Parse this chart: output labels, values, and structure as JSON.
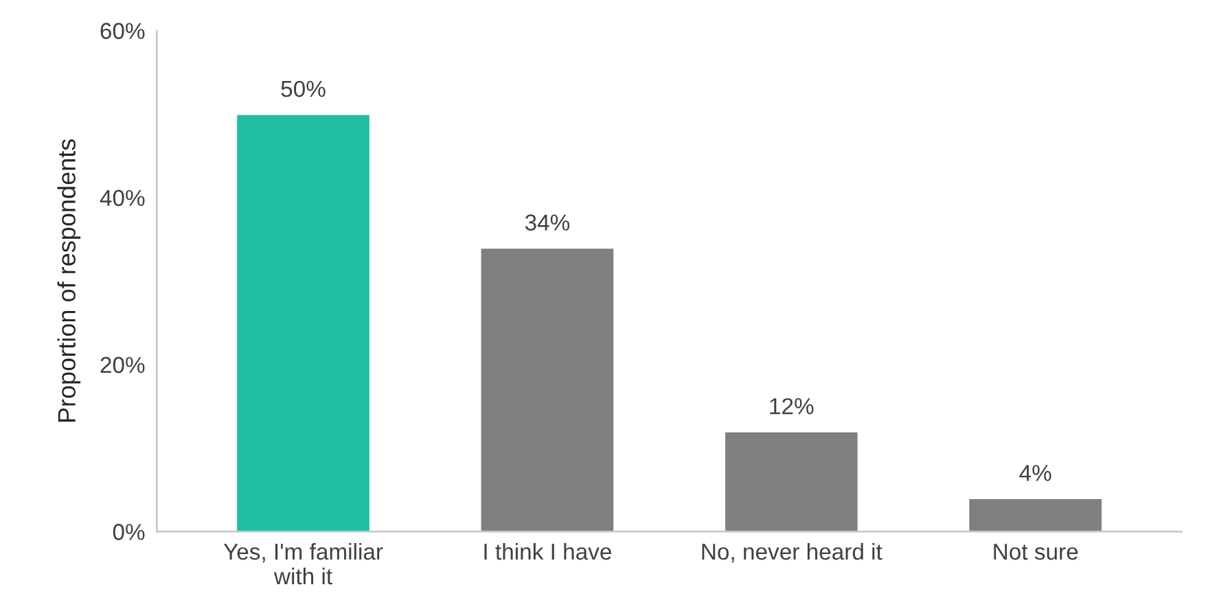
{
  "chart_data": {
    "type": "bar",
    "ylabel": "Proportion of respondents",
    "categories": [
      "Yes, I'm familiar with it",
      "I think I have",
      "No, never heard it",
      "Not sure"
    ],
    "values": [
      50,
      34,
      12,
      4
    ],
    "value_labels": [
      "50%",
      "34%",
      "12%",
      "4%"
    ],
    "colors": [
      "#1dbfa0",
      "#808080",
      "#808080",
      "#808080"
    ],
    "ylim": [
      0,
      60
    ],
    "yticks": [
      {
        "value": 0,
        "label": "0%"
      },
      {
        "value": 20,
        "label": "20%"
      },
      {
        "value": 40,
        "label": "40%"
      },
      {
        "value": 60,
        "label": "60%"
      }
    ],
    "grid": false,
    "legend": false
  }
}
